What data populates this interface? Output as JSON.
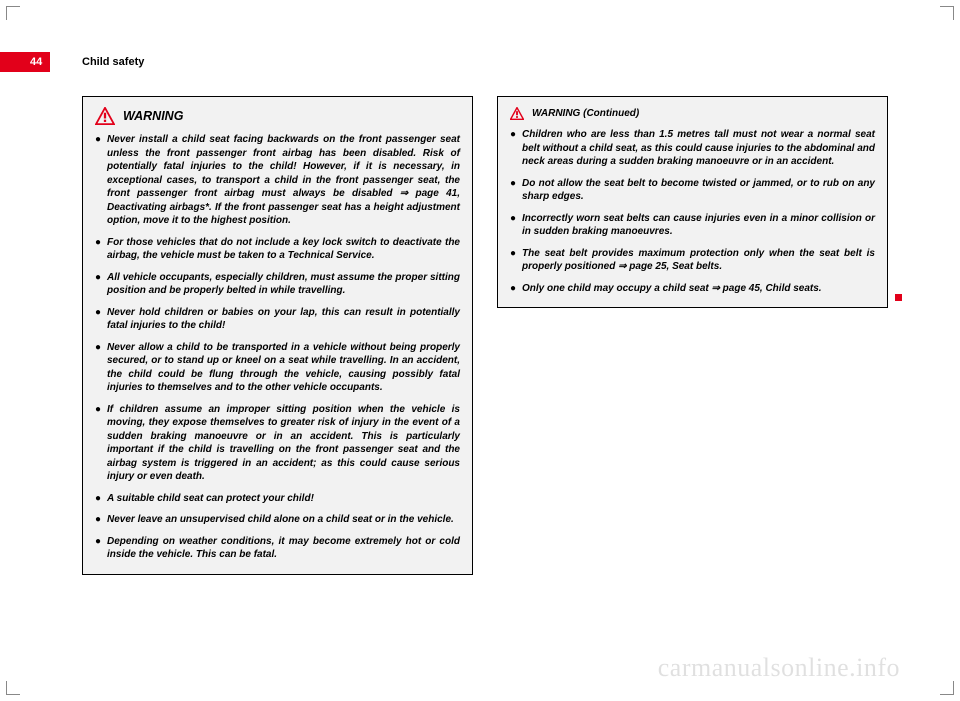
{
  "page_number": "44",
  "chapter": "Child safety",
  "left_box": {
    "title": "WARNING",
    "bullets": [
      "Never install a child seat facing backwards on the front passenger seat unless the front passenger front airbag has been disabled. Risk of potentially fatal injuries to the child! However, if it is necessary, in exceptional cases, to transport a child in the front passenger seat, the front passenger front airbag must always be disabled ⇒ page 41, Deactivating airbags*. If the front passenger seat has a height adjustment option, move it to the highest position.",
      "For those vehicles that do not include a key lock switch to deactivate the airbag, the vehicle must be taken to a Technical Service.",
      "All vehicle occupants, especially children, must assume the proper sitting position and be properly belted in while travelling.",
      "Never hold children or babies on your lap, this can result in potentially fatal injuries to the child!",
      "Never allow a child to be transported in a vehicle without being properly secured, or to stand up or kneel on a seat while travelling. In an accident, the child could be flung through the vehicle, causing possibly fatal injuries to themselves and to the other vehicle occupants.",
      "If children assume an improper sitting position when the vehicle is moving, they expose themselves to greater risk of injury in the event of a sudden braking manoeuvre or in an accident. This is particularly important if the child is travelling on the front passenger seat and the airbag system is triggered in an accident; as this could cause serious injury or even death.",
      "A suitable child seat can protect your child!",
      "Never leave an unsupervised child alone on a child seat or in the vehicle.",
      "Depending on weather conditions, it may become extremely hot or cold inside the vehicle. This can be fatal."
    ]
  },
  "right_box": {
    "title": "WARNING (Continued)",
    "bullets": [
      "Children who are less than 1.5 metres tall must not wear a normal seat belt without a child seat, as this could cause injuries to the abdominal and neck areas during a sudden braking manoeuvre or in an accident.",
      "Do not allow the seat belt to become twisted or jammed, or to rub on any sharp edges.",
      "Incorrectly worn seat belts can cause injuries even in a minor collision or in sudden braking manoeuvres.",
      "The seat belt provides maximum protection only when the seat belt is properly positioned ⇒ page 25, Seat belts.",
      "Only one child may occupy a child seat ⇒ page 45, Child seats."
    ]
  },
  "colors": {
    "accent": "#e2001a",
    "box_bg": "#f2f2f2",
    "box_border": "#000000",
    "watermark": "rgba(0,0,0,0.12)"
  },
  "watermark": "carmanualsonline.info"
}
